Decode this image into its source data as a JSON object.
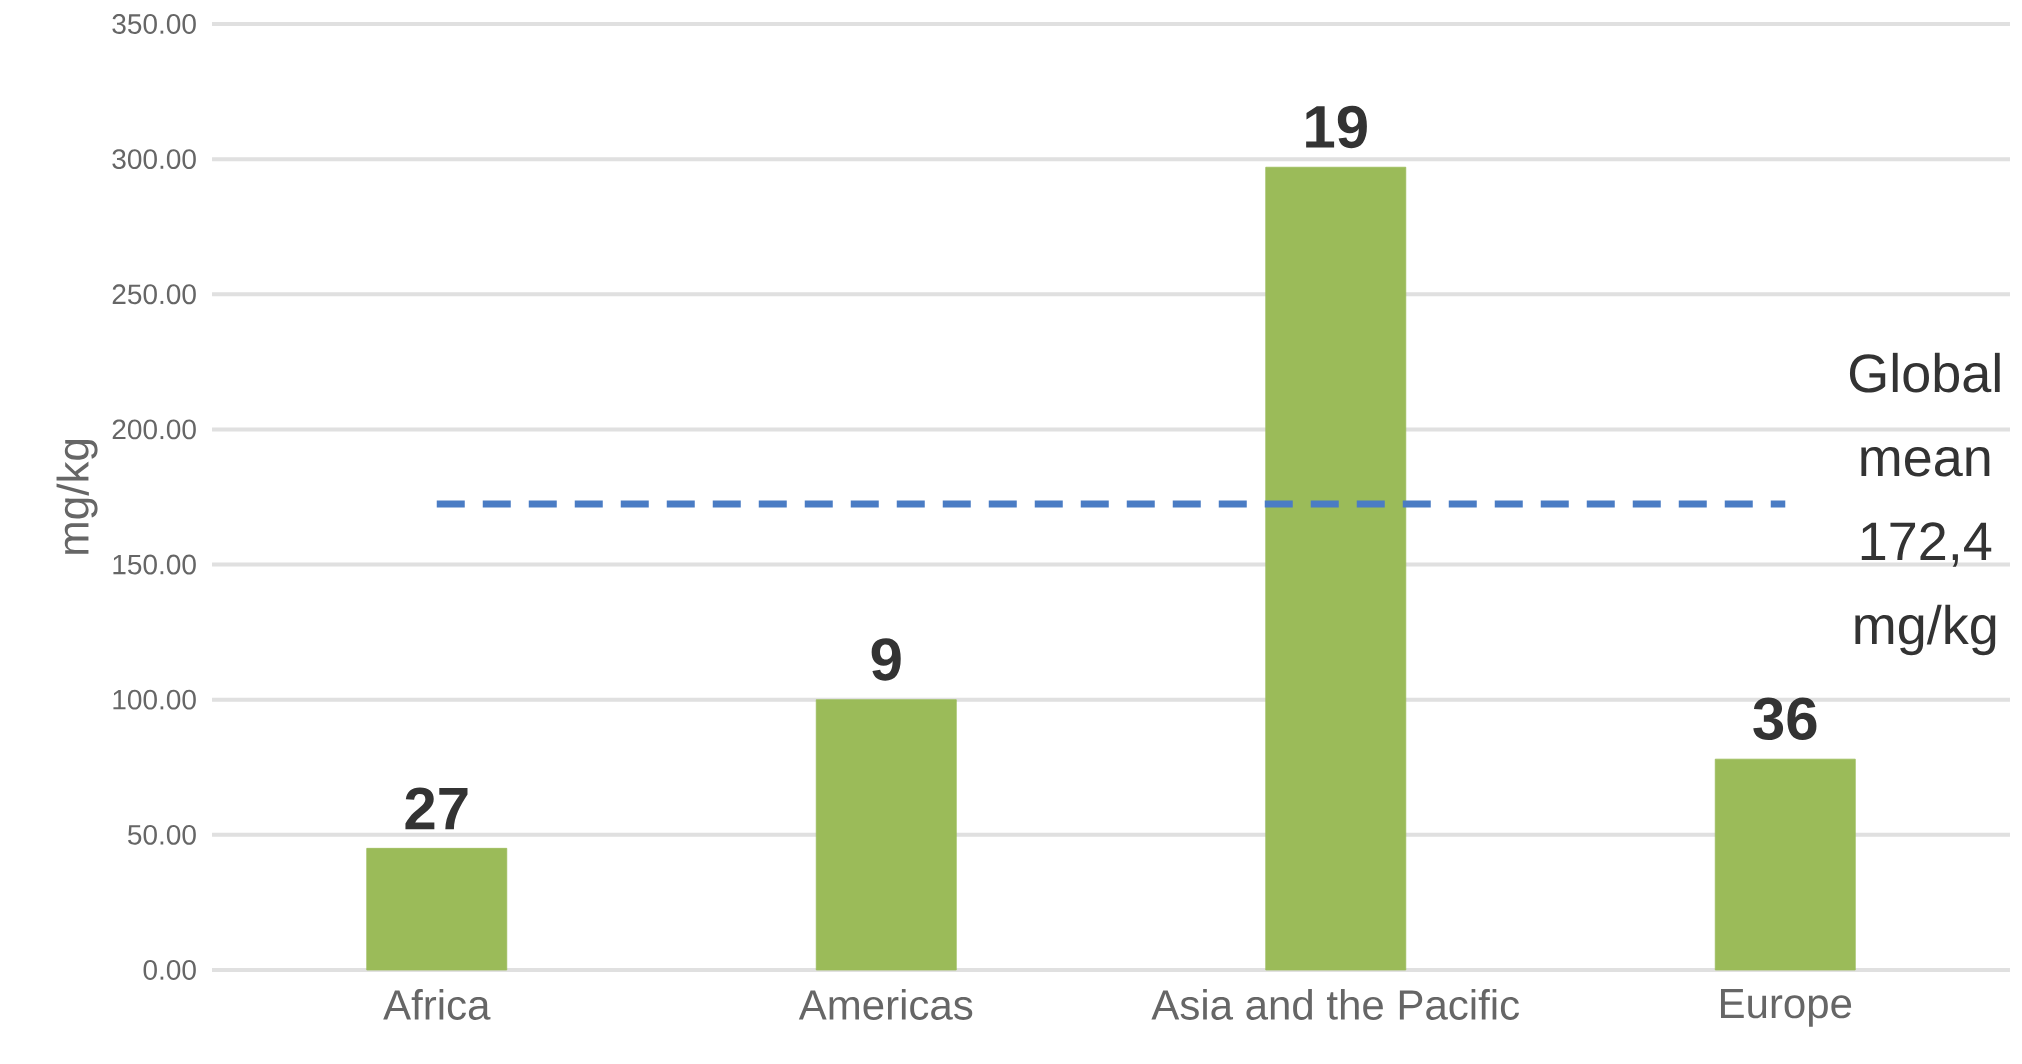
{
  "chart_data": {
    "type": "bar",
    "ylabel": "mg/kg",
    "categories": [
      "Africa",
      "Americas",
      "Asia and the Pacific",
      "Europe"
    ],
    "values": [
      45,
      100,
      297,
      78
    ],
    "annotations": [
      {
        "text": "27",
        "x": "Africa",
        "y": 45
      },
      {
        "text": "9",
        "x": "Americas",
        "y": 100
      },
      {
        "text": "19",
        "x": "Asia and the Pacific",
        "y": 297
      },
      {
        "text": "36",
        "x": "Europe",
        "y": 78
      }
    ],
    "color": "#9bbb59",
    "ylim": [
      0,
      350
    ],
    "yticks": [
      {
        "value": 0,
        "label": "0.00"
      },
      {
        "value": 50,
        "label": "50.00"
      },
      {
        "value": 100,
        "label": "100.00"
      },
      {
        "value": 150,
        "label": "150.00"
      },
      {
        "value": 200,
        "label": "200.00"
      },
      {
        "value": 250,
        "label": "250.00"
      },
      {
        "value": 300,
        "label": "300.00"
      },
      {
        "value": 350,
        "label": "350.00"
      }
    ],
    "grid": "y",
    "ref_lines": [
      {
        "axis": "y",
        "value": 172.4,
        "label": "Global mean 172,4 mg/kg",
        "color": "#4a7cc4",
        "line_style": "dashed"
      }
    ]
  }
}
